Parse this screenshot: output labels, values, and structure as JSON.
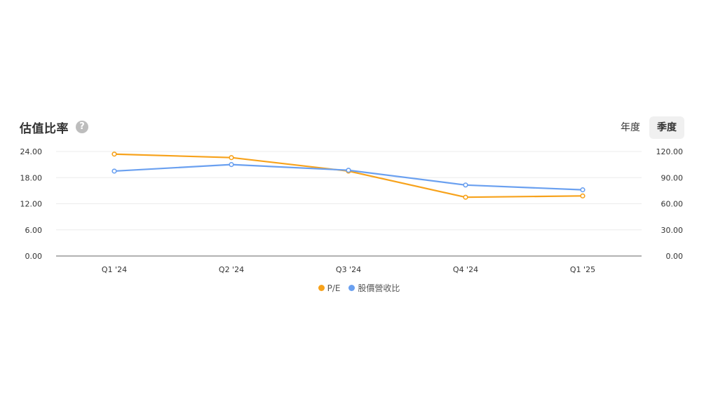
{
  "header": {
    "title": "估值比率",
    "help_icon": "question-mark-icon"
  },
  "toggle": {
    "options": [
      "年度",
      "季度"
    ],
    "selected": "季度"
  },
  "colors": {
    "pe": "#f7a21b",
    "ps": "#6aa0f0"
  },
  "chart_data": {
    "type": "line",
    "categories": [
      "Q1 '24",
      "Q2 '24",
      "Q3 '24",
      "Q4 '24",
      "Q1 '25"
    ],
    "series": [
      {
        "name": "P/E",
        "axis": "left",
        "values": [
          23.4,
          22.6,
          19.5,
          13.5,
          13.8
        ]
      },
      {
        "name": "股價營收比",
        "axis": "right",
        "values": [
          97.5,
          105.0,
          98.5,
          81.5,
          76.0
        ]
      }
    ],
    "y_left": {
      "lim": [
        0,
        24
      ],
      "ticks": [
        "0.00",
        "6.00",
        "12.00",
        "18.00",
        "24.00"
      ]
    },
    "y_right": {
      "lim": [
        0,
        120
      ],
      "ticks": [
        "0.00",
        "30.00",
        "60.00",
        "90.00",
        "120.00"
      ]
    },
    "grid": true,
    "legend": "bottom-center"
  }
}
